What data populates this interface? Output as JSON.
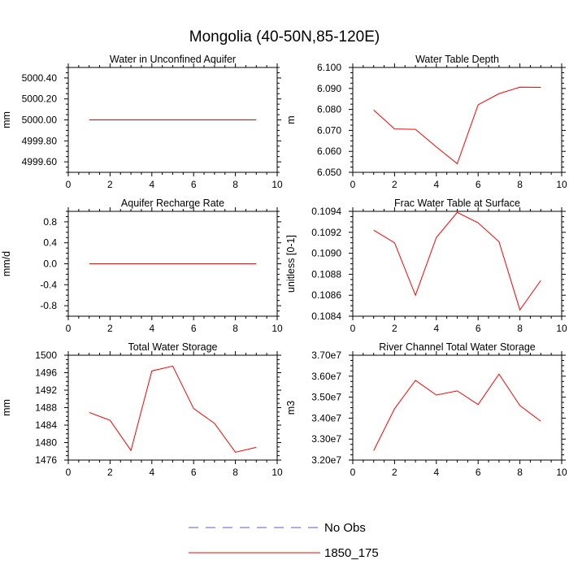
{
  "figure": {
    "title": "Mongolia (40-50N,85-120E)"
  },
  "legend": {
    "entries": [
      {
        "label": "No Obs",
        "color": "#5b5bc8",
        "style": "dashed"
      },
      {
        "label": "1850_175",
        "color": "#ff0000",
        "style": "solid"
      }
    ]
  },
  "chart_data": [
    {
      "type": "line",
      "title": "Water in Unconfined Aquifer",
      "ylabel": "mm",
      "xlim": [
        0,
        10
      ],
      "ylim": [
        4999.5,
        5000.5
      ],
      "xticks": [
        0,
        2,
        4,
        6,
        8,
        10
      ],
      "yticks": [
        4999.6,
        4999.8,
        5000.0,
        5000.2,
        5000.4
      ],
      "ytick_labels": [
        "4999.60",
        "4999.80",
        "5000.00",
        "5000.20",
        "5000.40"
      ],
      "series": [
        {
          "color": "#ff0000",
          "x": [
            1,
            2,
            3,
            4,
            5,
            6,
            7,
            8,
            9
          ],
          "y": [
            5000,
            5000,
            5000,
            5000,
            5000,
            5000,
            5000,
            5000,
            5000
          ]
        }
      ]
    },
    {
      "type": "line",
      "title": "Water Table Depth",
      "ylabel": "m",
      "xlim": [
        0,
        10
      ],
      "ylim": [
        6.05,
        6.1
      ],
      "xticks": [
        0,
        2,
        4,
        6,
        8,
        10
      ],
      "yticks": [
        6.05,
        6.06,
        6.07,
        6.08,
        6.09,
        6.1
      ],
      "ytick_labels": [
        "6.050",
        "6.060",
        "6.070",
        "6.080",
        "6.090",
        "6.100"
      ],
      "series": [
        {
          "color": "#ff0000",
          "x": [
            1,
            2,
            3,
            4,
            5,
            6,
            7,
            8,
            9
          ],
          "y": [
            6.0797,
            6.0707,
            6.0705,
            6.0621,
            6.0541,
            6.0822,
            6.0875,
            6.0906,
            6.0905
          ]
        }
      ]
    },
    {
      "type": "line",
      "title": "Aquifer Recharge Rate",
      "ylabel": "mm/d",
      "xlim": [
        0,
        10
      ],
      "ylim": [
        -1,
        1
      ],
      "xticks": [
        0,
        2,
        4,
        6,
        8,
        10
      ],
      "yticks": [
        -0.8,
        -0.4,
        0,
        0.4,
        0.8
      ],
      "ytick_labels": [
        "-0.8",
        "-0.4",
        "0.0",
        "0.4",
        "0.8"
      ],
      "series": [
        {
          "color": "#ff0000",
          "x": [
            1,
            2,
            3,
            4,
            5,
            6,
            7,
            8,
            9
          ],
          "y": [
            0,
            0,
            0,
            0,
            0,
            0,
            0,
            0,
            0
          ]
        }
      ]
    },
    {
      "type": "line",
      "title": "Frac Water Table at Surface",
      "ylabel": "unitless [0-1]",
      "xlim": [
        0,
        10
      ],
      "ylim": [
        0.1084,
        0.1094
      ],
      "xticks": [
        0,
        2,
        4,
        6,
        8,
        10
      ],
      "yticks": [
        0.1084,
        0.1086,
        0.1088,
        0.109,
        0.1092,
        0.1094
      ],
      "ytick_labels": [
        "0.1084",
        "0.1086",
        "0.1088",
        "0.1090",
        "0.1092",
        "0.1094"
      ],
      "series": [
        {
          "color": "#ff0000",
          "x": [
            1,
            2,
            3,
            4,
            5,
            6,
            7,
            8,
            9
          ],
          "y": [
            0.10922,
            0.1091,
            0.1086,
            0.10915,
            0.10939,
            0.10929,
            0.10911,
            0.10846,
            0.10874
          ]
        }
      ]
    },
    {
      "type": "line",
      "title": "Total Water Storage",
      "ylabel": "mm",
      "xlim": [
        0,
        10
      ],
      "ylim": [
        1476,
        1500
      ],
      "xticks": [
        0,
        2,
        4,
        6,
        8,
        10
      ],
      "yticks": [
        1476,
        1480,
        1484,
        1488,
        1492,
        1496,
        1500
      ],
      "ytick_labels": [
        "1476",
        "1480",
        "1484",
        "1488",
        "1492",
        "1496",
        "1500"
      ],
      "series": [
        {
          "color": "#ff0000",
          "x": [
            1,
            2,
            3,
            4,
            5,
            6,
            7,
            8,
            9
          ],
          "y": [
            1486.9,
            1485.1,
            1478.2,
            1496.4,
            1497.5,
            1487.8,
            1484.4,
            1477.8,
            1478.9
          ]
        }
      ]
    },
    {
      "type": "line",
      "title": "River Channel Total Water Storage",
      "ylabel": "m3",
      "xlim": [
        0,
        10
      ],
      "ylim": [
        32000000,
        37000000
      ],
      "xticks": [
        0,
        2,
        4,
        6,
        8,
        10
      ],
      "yticks": [
        32000000,
        33000000,
        34000000,
        35000000,
        36000000,
        37000000
      ],
      "ytick_labels": [
        "3.20e7",
        "3.30e7",
        "3.40e7",
        "3.50e7",
        "3.60e7",
        "3.70e7"
      ],
      "series": [
        {
          "color": "#ff0000",
          "x": [
            1,
            2,
            3,
            4,
            5,
            6,
            7,
            8,
            9
          ],
          "y": [
            32450000,
            34450000,
            35800000,
            35100000,
            35300000,
            34650000,
            36100000,
            34600000,
            33850000
          ]
        }
      ]
    }
  ]
}
